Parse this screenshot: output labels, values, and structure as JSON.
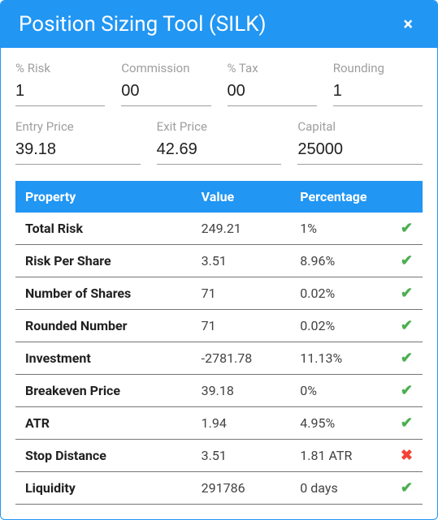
{
  "colors": {
    "accent": "#2196f3",
    "text": "#212121",
    "muted": "#9e9e9e",
    "underline": "#9e9e9e",
    "row_border": "#757575",
    "ok": "#4caf50",
    "bad": "#f44336",
    "background": "#ffffff"
  },
  "header": {
    "title": "Position Sizing Tool (SILK)",
    "close_glyph": "×"
  },
  "inputs_row1": [
    {
      "key": "risk",
      "label": "% Risk",
      "value": "1"
    },
    {
      "key": "commission",
      "label": "Commission",
      "value": "00"
    },
    {
      "key": "tax",
      "label": "% Tax",
      "value": "00"
    },
    {
      "key": "rounding",
      "label": "Rounding",
      "value": "1"
    }
  ],
  "inputs_row2": [
    {
      "key": "entry",
      "label": "Entry Price",
      "value": "39.18"
    },
    {
      "key": "exit",
      "label": "Exit Price",
      "value": "42.69"
    },
    {
      "key": "capital",
      "label": "Capital",
      "value": "25000"
    }
  ],
  "table": {
    "headers": {
      "property": "Property",
      "value": "Value",
      "percentage": "Percentage"
    },
    "rows": [
      {
        "property": "Total Risk",
        "value": "249.21",
        "percentage": "1%",
        "status": "ok"
      },
      {
        "property": "Risk Per Share",
        "value": "3.51",
        "percentage": "8.96%",
        "status": "ok"
      },
      {
        "property": "Number of Shares",
        "value": "71",
        "percentage": "0.02%",
        "status": "ok"
      },
      {
        "property": "Rounded Number",
        "value": "71",
        "percentage": "0.02%",
        "status": "ok"
      },
      {
        "property": "Investment",
        "value": "-2781.78",
        "percentage": "11.13%",
        "status": "ok"
      },
      {
        "property": "Breakeven Price",
        "value": "39.18",
        "percentage": "0%",
        "status": "ok"
      },
      {
        "property": "ATR",
        "value": "1.94",
        "percentage": "4.95%",
        "status": "ok"
      },
      {
        "property": "Stop Distance",
        "value": "3.51",
        "percentage": "1.81 ATR",
        "status": "bad"
      },
      {
        "property": "Liquidity",
        "value": "291786",
        "percentage": "0 days",
        "status": "ok"
      }
    ]
  },
  "glyphs": {
    "ok": "✔",
    "bad": "✖"
  }
}
